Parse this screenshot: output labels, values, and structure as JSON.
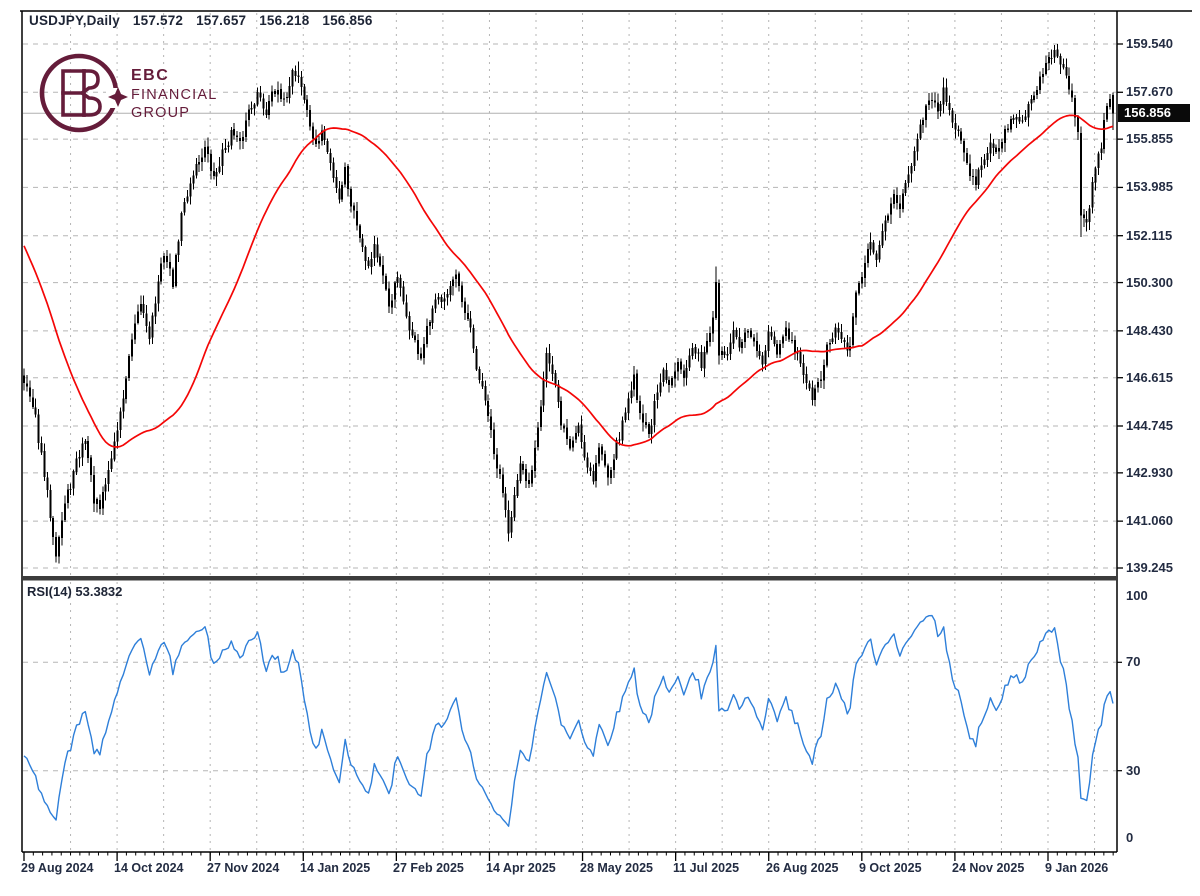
{
  "window": {
    "header": {
      "symbol": "USDJPY,Daily",
      "open": "157.572",
      "high": "157.657",
      "low": "156.218",
      "close": "156.856"
    }
  },
  "logo": {
    "line1": "EBC",
    "line2": "FINANCIAL",
    "line3": "GROUP",
    "color": "#651c3a"
  },
  "colors": {
    "candle": "#000000",
    "ma_line": "#f40606",
    "rsi_line": "#2e7fd9",
    "grid": "#b5b5b5",
    "axis_text": "#232c42",
    "current_price_line": "#b0b0b0",
    "tag_bg": "#0a0a0a",
    "tag_text": "#ffffff",
    "brand": "#651c3a"
  },
  "chart_data": {
    "type": "candlestick",
    "title": "USDJPY Daily with 50-period MA and RSI(14)",
    "symbol": "USDJPY",
    "timeframe": "Daily",
    "last_quote": {
      "open": 157.572,
      "high": 157.657,
      "low": 156.218,
      "close": 156.856
    },
    "current_price_label": "156.856",
    "current_price": 156.856,
    "price_axis": {
      "labels": [
        "159.540",
        "157.670",
        "155.855",
        "153.985",
        "152.115",
        "150.300",
        "148.430",
        "146.615",
        "144.745",
        "142.930",
        "141.060",
        "139.245"
      ],
      "ylim": [
        139.245,
        159.54
      ],
      "grid": "dashed"
    },
    "date_axis": {
      "labels": [
        "29 Aug 2024",
        "14 Oct 2024",
        "27 Nov 2024",
        "14 Jan 2025",
        "27 Feb 2025",
        "14 Apr 2025",
        "28 May 2025",
        "11 Jul 2025",
        "26 Aug 2025",
        "9 Oct 2025",
        "24 Nov 2025",
        "9 Jan 2026"
      ]
    },
    "main": {
      "bars": 374,
      "ma_period": 50,
      "close_anchors": [
        [
          0,
          146.6
        ],
        [
          4,
          145.0
        ],
        [
          7,
          142.8
        ],
        [
          11,
          139.9
        ],
        [
          14,
          141.7
        ],
        [
          18,
          143.3
        ],
        [
          21,
          144.3
        ],
        [
          24,
          141.9
        ],
        [
          26,
          141.5
        ],
        [
          29,
          143.0
        ],
        [
          33,
          145.2
        ],
        [
          37,
          148.0
        ],
        [
          40,
          149.5
        ],
        [
          43,
          148.3
        ],
        [
          48,
          151.5
        ],
        [
          51,
          150.3
        ],
        [
          54,
          152.9
        ],
        [
          58,
          154.6
        ],
        [
          62,
          155.5
        ],
        [
          65,
          154.3
        ],
        [
          68,
          155.3
        ],
        [
          71,
          156.1
        ],
        [
          74,
          155.6
        ],
        [
          77,
          157.0
        ],
        [
          80,
          157.6
        ],
        [
          83,
          156.9
        ],
        [
          85,
          157.9
        ],
        [
          89,
          157.2
        ],
        [
          92,
          158.5
        ],
        [
          94,
          158.3
        ],
        [
          95,
          157.9
        ],
        [
          98,
          156.4
        ],
        [
          100,
          155.5
        ],
        [
          102,
          156.2
        ],
        [
          105,
          154.9
        ],
        [
          108,
          153.6
        ],
        [
          110,
          154.7
        ],
        [
          112,
          153.4
        ],
        [
          115,
          152.2
        ],
        [
          118,
          150.9
        ],
        [
          120,
          151.8
        ],
        [
          123,
          150.4
        ],
        [
          125,
          149.4
        ],
        [
          128,
          150.5
        ],
        [
          130,
          149.4
        ],
        [
          133,
          148.2
        ],
        [
          136,
          147.4
        ],
        [
          138,
          148.4
        ],
        [
          141,
          149.5
        ],
        [
          145,
          150.0
        ],
        [
          148,
          150.5
        ],
        [
          150,
          149.4
        ],
        [
          153,
          148.4
        ],
        [
          155,
          147.0
        ],
        [
          159,
          145.2
        ],
        [
          161,
          143.6
        ],
        [
          164,
          142.3
        ],
        [
          166,
          140.8
        ],
        [
          168,
          142.0
        ],
        [
          170,
          143.1
        ],
        [
          173,
          142.4
        ],
        [
          175,
          144.0
        ],
        [
          177,
          145.7
        ],
        [
          179,
          147.6
        ],
        [
          182,
          146.2
        ],
        [
          184,
          144.9
        ],
        [
          187,
          143.9
        ],
        [
          190,
          144.8
        ],
        [
          192,
          143.6
        ],
        [
          195,
          142.7
        ],
        [
          197,
          143.9
        ],
        [
          200,
          142.9
        ],
        [
          202,
          143.6
        ],
        [
          205,
          144.8
        ],
        [
          208,
          146.3
        ],
        [
          209,
          146.6
        ],
        [
          211,
          145.3
        ],
        [
          214,
          144.4
        ],
        [
          216,
          145.5
        ],
        [
          219,
          146.8
        ],
        [
          221,
          146.2
        ],
        [
          224,
          147.4
        ],
        [
          226,
          146.8
        ],
        [
          229,
          147.7
        ],
        [
          232,
          147.2
        ],
        [
          234,
          148.1
        ],
        [
          236,
          148.8
        ],
        [
          237,
          150.3
        ],
        [
          238,
          147.6
        ],
        [
          240,
          147.3
        ],
        [
          243,
          148.3
        ],
        [
          245,
          147.7
        ],
        [
          248,
          148.5
        ],
        [
          250,
          147.9
        ],
        [
          253,
          147.1
        ],
        [
          255,
          148.2
        ],
        [
          258,
          147.6
        ],
        [
          261,
          148.4
        ],
        [
          263,
          147.9
        ],
        [
          266,
          147.2
        ],
        [
          268,
          146.4
        ],
        [
          270,
          145.7
        ],
        [
          273,
          146.7
        ],
        [
          275,
          147.7
        ],
        [
          278,
          148.5
        ],
        [
          280,
          148.0
        ],
        [
          283,
          147.7
        ],
        [
          285,
          149.9
        ],
        [
          287,
          150.7
        ],
        [
          290,
          151.8
        ],
        [
          292,
          151.2
        ],
        [
          295,
          152.7
        ],
        [
          298,
          153.9
        ],
        [
          300,
          153.2
        ],
        [
          303,
          154.4
        ],
        [
          305,
          155.6
        ],
        [
          308,
          156.7
        ],
        [
          310,
          157.3
        ],
        [
          313,
          157.0
        ],
        [
          315,
          157.8
        ],
        [
          318,
          156.6
        ],
        [
          321,
          155.8
        ],
        [
          323,
          154.9
        ],
        [
          326,
          154.0
        ],
        [
          328,
          155.0
        ],
        [
          331,
          155.8
        ],
        [
          334,
          155.3
        ],
        [
          336,
          156.1
        ],
        [
          339,
          156.8
        ],
        [
          341,
          156.4
        ],
        [
          344,
          157.1
        ],
        [
          346,
          157.7
        ],
        [
          349,
          158.4
        ],
        [
          351,
          158.9
        ],
        [
          354,
          159.2
        ],
        [
          356,
          158.6
        ],
        [
          358,
          157.9
        ],
        [
          360,
          156.8
        ],
        [
          361,
          156.3
        ],
        [
          362,
          152.9
        ],
        [
          364,
          152.6
        ],
        [
          365,
          153.3
        ],
        [
          367,
          154.7
        ],
        [
          369,
          155.7
        ],
        [
          371,
          157.1
        ],
        [
          372,
          157.5
        ],
        [
          373,
          156.856
        ]
      ],
      "prehistory_anchors": [
        [
          -50,
          159.0
        ],
        [
          -40,
          158.0
        ],
        [
          -30,
          156.5
        ],
        [
          -24,
          152.0
        ],
        [
          -19,
          145.5
        ],
        [
          -15,
          142.6
        ],
        [
          -11,
          146.0
        ],
        [
          -6,
          147.0
        ],
        [
          -1,
          146.8
        ]
      ],
      "overrides": [
        {
          "i": 11,
          "l": 139.45
        },
        {
          "i": 94,
          "h": 158.87
        },
        {
          "i": 237,
          "h": 150.92
        },
        {
          "i": 315,
          "h": 158.25
        },
        {
          "i": 354,
          "h": 159.54
        },
        {
          "i": 362,
          "o": 156.1,
          "h": 156.35,
          "l": 152.07,
          "c": 152.9
        },
        {
          "i": 373,
          "o": 157.572,
          "h": 157.657,
          "l": 156.218,
          "c": 156.856
        }
      ]
    },
    "rsi": {
      "label": "RSI(14) 53.3832",
      "period": 14,
      "current_value": 53.3832,
      "levels": [
        {
          "text": "100",
          "v": 100
        },
        {
          "text": "70",
          "v": 70
        },
        {
          "text": "30",
          "v": 30
        },
        {
          "text": "0",
          "v": 0
        }
      ],
      "ylim": [
        0,
        100
      ]
    }
  }
}
